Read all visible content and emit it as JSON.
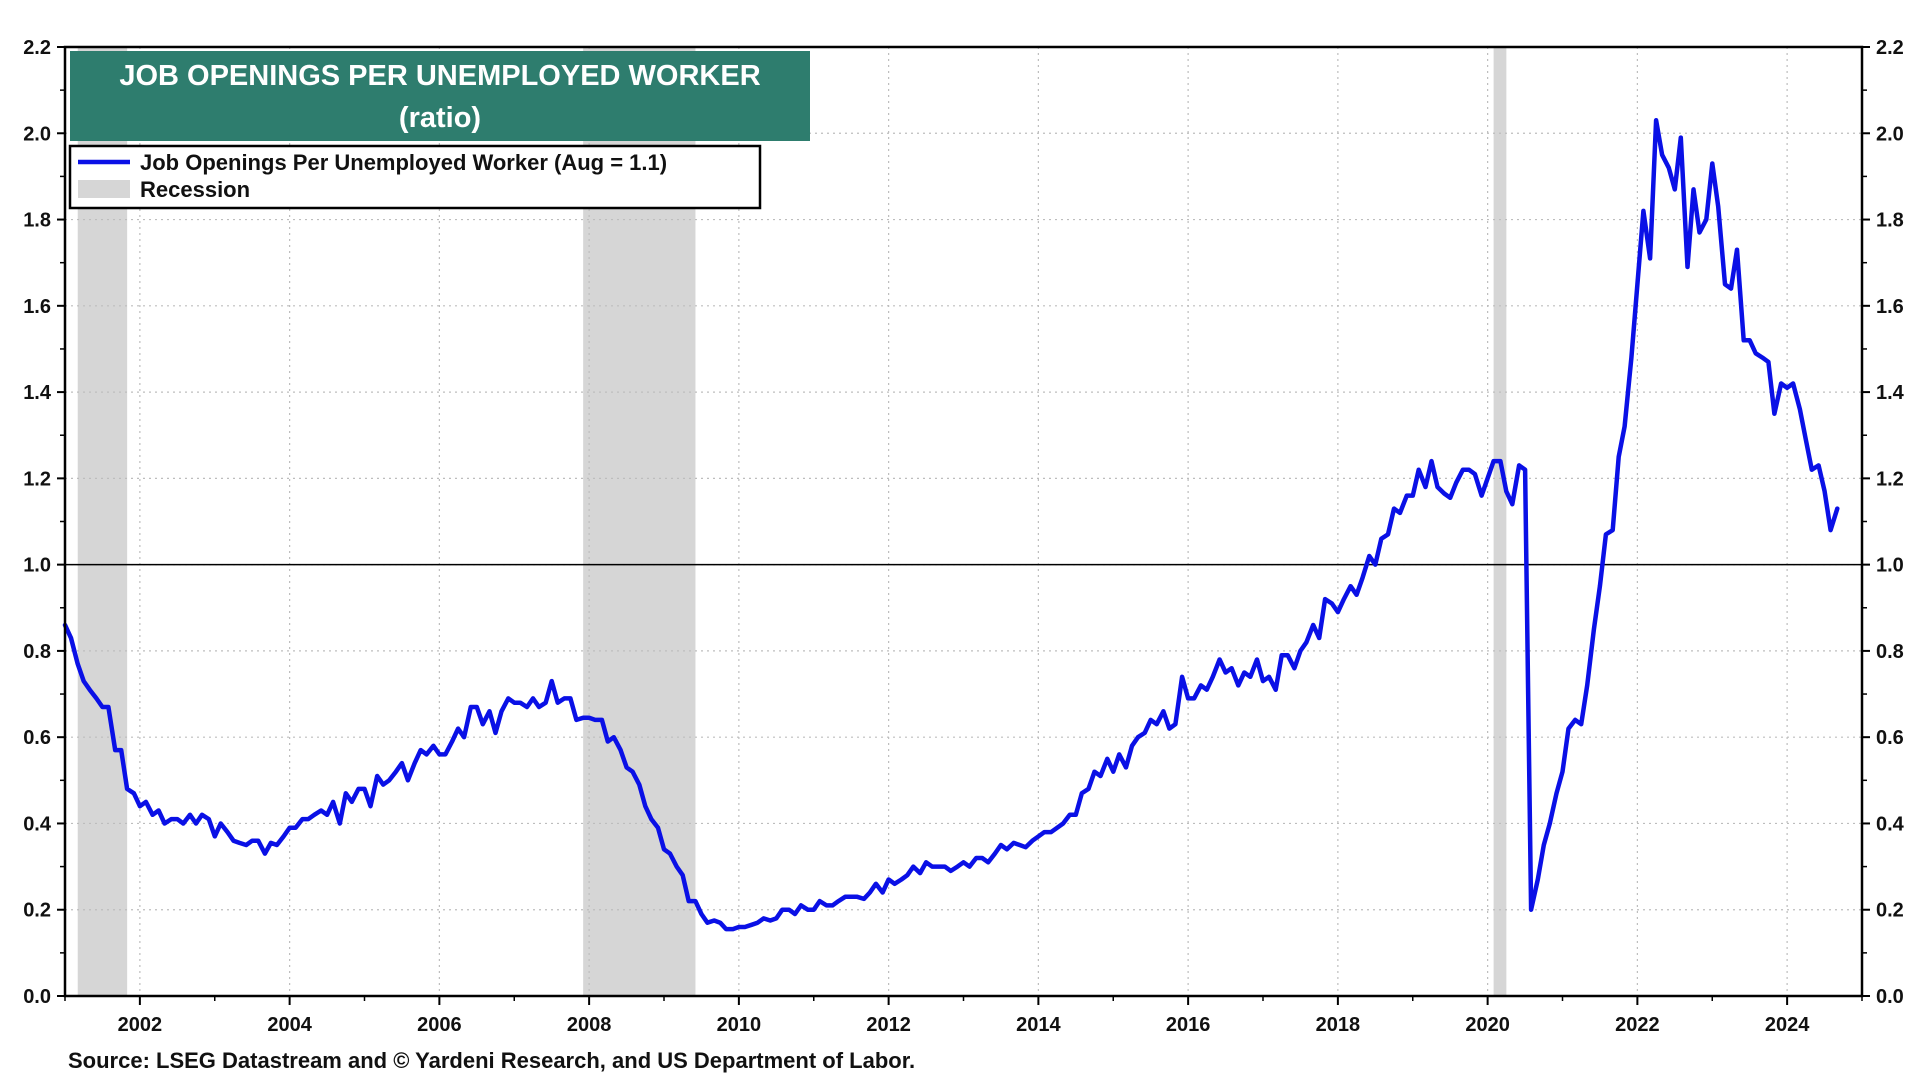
{
  "chart_data": {
    "type": "line",
    "title": "JOB OPENINGS PER UNEMPLOYED WORKER",
    "subtitle": "(ratio)",
    "source": "Source: LSEG Datastream and © Yardeni Research, and US Department of Labor.",
    "xlim": [
      2001.0,
      2025.0
    ],
    "ylim": [
      0.0,
      2.2
    ],
    "x_ticks": [
      2002,
      2004,
      2006,
      2008,
      2010,
      2012,
      2014,
      2016,
      2018,
      2020,
      2022,
      2024
    ],
    "y_ticks": [
      "0.0",
      "0.2",
      "0.4",
      "0.6",
      "0.8",
      "1.0",
      "1.2",
      "1.4",
      "1.6",
      "1.8",
      "2.0",
      "2.2"
    ],
    "grid": true,
    "reference_line": 1.0,
    "legend_position": "top-left",
    "title_color": "#2E7D6E",
    "line_color": "#0A10E6",
    "recession_color": "#D6D6D6",
    "legend": [
      {
        "label": "Job Openings Per Unemployed Worker (Aug = 1.1)",
        "kind": "line"
      },
      {
        "label": "Recession",
        "kind": "band"
      }
    ],
    "recessions": [
      [
        2001.17,
        2001.83
      ],
      [
        2007.92,
        2009.42
      ],
      [
        2020.08,
        2020.25
      ]
    ],
    "series": [
      {
        "name": "Job Openings Per Unemployed Worker (Aug = 1.1)",
        "points": [
          [
            2001.0,
            0.86
          ],
          [
            2001.08,
            0.83
          ],
          [
            2001.17,
            0.77
          ],
          [
            2001.25,
            0.73
          ],
          [
            2001.33,
            0.71
          ],
          [
            2001.42,
            0.69
          ],
          [
            2001.5,
            0.67
          ],
          [
            2001.58,
            0.67
          ],
          [
            2001.67,
            0.57
          ],
          [
            2001.75,
            0.57
          ],
          [
            2001.83,
            0.48
          ],
          [
            2001.92,
            0.47
          ],
          [
            2002.0,
            0.44
          ],
          [
            2002.08,
            0.45
          ],
          [
            2002.17,
            0.42
          ],
          [
            2002.25,
            0.43
          ],
          [
            2002.33,
            0.4
          ],
          [
            2002.42,
            0.41
          ],
          [
            2002.5,
            0.41
          ],
          [
            2002.58,
            0.4
          ],
          [
            2002.67,
            0.42
          ],
          [
            2002.75,
            0.4
          ],
          [
            2002.83,
            0.42
          ],
          [
            2002.92,
            0.41
          ],
          [
            2003.0,
            0.37
          ],
          [
            2003.08,
            0.4
          ],
          [
            2003.17,
            0.38
          ],
          [
            2003.25,
            0.36
          ],
          [
            2003.33,
            0.355
          ],
          [
            2003.42,
            0.35
          ],
          [
            2003.5,
            0.36
          ],
          [
            2003.58,
            0.36
          ],
          [
            2003.67,
            0.33
          ],
          [
            2003.75,
            0.355
          ],
          [
            2003.83,
            0.35
          ],
          [
            2003.92,
            0.37
          ],
          [
            2004.0,
            0.39
          ],
          [
            2004.08,
            0.39
          ],
          [
            2004.17,
            0.41
          ],
          [
            2004.25,
            0.41
          ],
          [
            2004.33,
            0.42
          ],
          [
            2004.42,
            0.43
          ],
          [
            2004.5,
            0.42
          ],
          [
            2004.58,
            0.45
          ],
          [
            2004.67,
            0.4
          ],
          [
            2004.75,
            0.47
          ],
          [
            2004.83,
            0.45
          ],
          [
            2004.92,
            0.48
          ],
          [
            2005.0,
            0.48
          ],
          [
            2005.08,
            0.44
          ],
          [
            2005.17,
            0.51
          ],
          [
            2005.25,
            0.49
          ],
          [
            2005.33,
            0.5
          ],
          [
            2005.42,
            0.52
          ],
          [
            2005.5,
            0.54
          ],
          [
            2005.58,
            0.5
          ],
          [
            2005.67,
            0.54
          ],
          [
            2005.75,
            0.57
          ],
          [
            2005.83,
            0.56
          ],
          [
            2005.92,
            0.58
          ],
          [
            2006.0,
            0.56
          ],
          [
            2006.08,
            0.56
          ],
          [
            2006.17,
            0.59
          ],
          [
            2006.25,
            0.62
          ],
          [
            2006.33,
            0.6
          ],
          [
            2006.42,
            0.67
          ],
          [
            2006.5,
            0.67
          ],
          [
            2006.58,
            0.63
          ],
          [
            2006.67,
            0.66
          ],
          [
            2006.75,
            0.61
          ],
          [
            2006.83,
            0.66
          ],
          [
            2006.92,
            0.69
          ],
          [
            2007.0,
            0.68
          ],
          [
            2007.08,
            0.68
          ],
          [
            2007.17,
            0.67
          ],
          [
            2007.25,
            0.69
          ],
          [
            2007.33,
            0.67
          ],
          [
            2007.42,
            0.68
          ],
          [
            2007.5,
            0.73
          ],
          [
            2007.58,
            0.68
          ],
          [
            2007.67,
            0.69
          ],
          [
            2007.75,
            0.69
          ],
          [
            2007.83,
            0.64
          ],
          [
            2007.92,
            0.645
          ],
          [
            2008.0,
            0.645
          ],
          [
            2008.08,
            0.64
          ],
          [
            2008.17,
            0.64
          ],
          [
            2008.25,
            0.59
          ],
          [
            2008.33,
            0.6
          ],
          [
            2008.42,
            0.57
          ],
          [
            2008.5,
            0.53
          ],
          [
            2008.58,
            0.52
          ],
          [
            2008.67,
            0.49
          ],
          [
            2008.75,
            0.44
          ],
          [
            2008.83,
            0.41
          ],
          [
            2008.92,
            0.39
          ],
          [
            2009.0,
            0.34
          ],
          [
            2009.08,
            0.33
          ],
          [
            2009.17,
            0.3
          ],
          [
            2009.25,
            0.28
          ],
          [
            2009.33,
            0.22
          ],
          [
            2009.42,
            0.22
          ],
          [
            2009.5,
            0.19
          ],
          [
            2009.58,
            0.17
          ],
          [
            2009.67,
            0.175
          ],
          [
            2009.75,
            0.17
          ],
          [
            2009.83,
            0.155
          ],
          [
            2009.92,
            0.155
          ],
          [
            2010.0,
            0.16
          ],
          [
            2010.08,
            0.16
          ],
          [
            2010.17,
            0.165
          ],
          [
            2010.25,
            0.17
          ],
          [
            2010.33,
            0.18
          ],
          [
            2010.42,
            0.175
          ],
          [
            2010.5,
            0.18
          ],
          [
            2010.58,
            0.2
          ],
          [
            2010.67,
            0.2
          ],
          [
            2010.75,
            0.19
          ],
          [
            2010.83,
            0.21
          ],
          [
            2010.92,
            0.2
          ],
          [
            2011.0,
            0.2
          ],
          [
            2011.08,
            0.22
          ],
          [
            2011.17,
            0.21
          ],
          [
            2011.25,
            0.21
          ],
          [
            2011.33,
            0.22
          ],
          [
            2011.42,
            0.23
          ],
          [
            2011.5,
            0.23
          ],
          [
            2011.58,
            0.23
          ],
          [
            2011.67,
            0.225
          ],
          [
            2011.75,
            0.24
          ],
          [
            2011.83,
            0.26
          ],
          [
            2011.92,
            0.24
          ],
          [
            2012.0,
            0.27
          ],
          [
            2012.08,
            0.26
          ],
          [
            2012.17,
            0.27
          ],
          [
            2012.25,
            0.28
          ],
          [
            2012.33,
            0.3
          ],
          [
            2012.42,
            0.285
          ],
          [
            2012.5,
            0.31
          ],
          [
            2012.58,
            0.3
          ],
          [
            2012.67,
            0.3
          ],
          [
            2012.75,
            0.3
          ],
          [
            2012.83,
            0.29
          ],
          [
            2012.92,
            0.3
          ],
          [
            2013.0,
            0.31
          ],
          [
            2013.08,
            0.3
          ],
          [
            2013.17,
            0.32
          ],
          [
            2013.25,
            0.32
          ],
          [
            2013.33,
            0.31
          ],
          [
            2013.42,
            0.33
          ],
          [
            2013.5,
            0.35
          ],
          [
            2013.58,
            0.34
          ],
          [
            2013.67,
            0.355
          ],
          [
            2013.75,
            0.35
          ],
          [
            2013.83,
            0.345
          ],
          [
            2013.92,
            0.36
          ],
          [
            2014.0,
            0.37
          ],
          [
            2014.08,
            0.38
          ],
          [
            2014.17,
            0.38
          ],
          [
            2014.25,
            0.39
          ],
          [
            2014.33,
            0.4
          ],
          [
            2014.42,
            0.42
          ],
          [
            2014.5,
            0.42
          ],
          [
            2014.58,
            0.47
          ],
          [
            2014.67,
            0.48
          ],
          [
            2014.75,
            0.52
          ],
          [
            2014.83,
            0.51
          ],
          [
            2014.92,
            0.55
          ],
          [
            2015.0,
            0.52
          ],
          [
            2015.08,
            0.56
          ],
          [
            2015.17,
            0.53
          ],
          [
            2015.25,
            0.58
          ],
          [
            2015.33,
            0.6
          ],
          [
            2015.42,
            0.61
          ],
          [
            2015.5,
            0.64
          ],
          [
            2015.58,
            0.63
          ],
          [
            2015.67,
            0.66
          ],
          [
            2015.75,
            0.62
          ],
          [
            2015.83,
            0.63
          ],
          [
            2015.92,
            0.74
          ],
          [
            2016.0,
            0.69
          ],
          [
            2016.08,
            0.69
          ],
          [
            2016.17,
            0.72
          ],
          [
            2016.25,
            0.71
          ],
          [
            2016.33,
            0.74
          ],
          [
            2016.42,
            0.78
          ],
          [
            2016.5,
            0.75
          ],
          [
            2016.58,
            0.76
          ],
          [
            2016.67,
            0.72
          ],
          [
            2016.75,
            0.75
          ],
          [
            2016.83,
            0.74
          ],
          [
            2016.92,
            0.78
          ],
          [
            2017.0,
            0.73
          ],
          [
            2017.08,
            0.74
          ],
          [
            2017.17,
            0.71
          ],
          [
            2017.25,
            0.79
          ],
          [
            2017.33,
            0.79
          ],
          [
            2017.42,
            0.76
          ],
          [
            2017.5,
            0.8
          ],
          [
            2017.58,
            0.82
          ],
          [
            2017.67,
            0.86
          ],
          [
            2017.75,
            0.83
          ],
          [
            2017.83,
            0.92
          ],
          [
            2017.92,
            0.91
          ],
          [
            2018.0,
            0.89
          ],
          [
            2018.08,
            0.92
          ],
          [
            2018.17,
            0.95
          ],
          [
            2018.25,
            0.93
          ],
          [
            2018.33,
            0.97
          ],
          [
            2018.42,
            1.02
          ],
          [
            2018.5,
            1.0
          ],
          [
            2018.58,
            1.06
          ],
          [
            2018.67,
            1.07
          ],
          [
            2018.75,
            1.13
          ],
          [
            2018.83,
            1.12
          ],
          [
            2018.92,
            1.16
          ],
          [
            2019.0,
            1.16
          ],
          [
            2019.08,
            1.22
          ],
          [
            2019.17,
            1.18
          ],
          [
            2019.25,
            1.24
          ],
          [
            2019.33,
            1.18
          ],
          [
            2019.42,
            1.165
          ],
          [
            2019.5,
            1.155
          ],
          [
            2019.58,
            1.19
          ],
          [
            2019.67,
            1.22
          ],
          [
            2019.75,
            1.22
          ],
          [
            2019.83,
            1.21
          ],
          [
            2019.92,
            1.16
          ],
          [
            2020.0,
            1.2
          ],
          [
            2020.08,
            1.24
          ],
          [
            2020.17,
            1.24
          ],
          [
            2020.25,
            1.17
          ],
          [
            2020.33,
            1.14
          ],
          [
            2020.42,
            1.23
          ],
          [
            2020.5,
            1.22
          ],
          [
            2020.58,
            0.2
          ],
          [
            2020.67,
            0.27
          ],
          [
            2020.75,
            0.35
          ],
          [
            2020.83,
            0.4
          ],
          [
            2020.92,
            0.47
          ],
          [
            2021.0,
            0.52
          ],
          [
            2021.08,
            0.62
          ],
          [
            2021.17,
            0.64
          ],
          [
            2021.25,
            0.63
          ],
          [
            2021.33,
            0.72
          ],
          [
            2021.42,
            0.85
          ],
          [
            2021.5,
            0.95
          ],
          [
            2021.58,
            1.07
          ],
          [
            2021.67,
            1.08
          ],
          [
            2021.75,
            1.25
          ],
          [
            2021.83,
            1.32
          ],
          [
            2021.92,
            1.48
          ],
          [
            2022.0,
            1.65
          ],
          [
            2022.08,
            1.82
          ],
          [
            2022.17,
            1.71
          ],
          [
            2022.25,
            2.03
          ],
          [
            2022.33,
            1.95
          ],
          [
            2022.42,
            1.92
          ],
          [
            2022.5,
            1.87
          ],
          [
            2022.58,
            1.99
          ],
          [
            2022.67,
            1.69
          ],
          [
            2022.75,
            1.87
          ],
          [
            2022.83,
            1.77
          ],
          [
            2022.92,
            1.8
          ],
          [
            2023.0,
            1.93
          ],
          [
            2023.08,
            1.83
          ],
          [
            2023.17,
            1.65
          ],
          [
            2023.25,
            1.64
          ],
          [
            2023.33,
            1.73
          ],
          [
            2023.42,
            1.52
          ],
          [
            2023.5,
            1.52
          ],
          [
            2023.58,
            1.49
          ],
          [
            2023.67,
            1.48
          ],
          [
            2023.75,
            1.47
          ],
          [
            2023.83,
            1.35
          ],
          [
            2023.92,
            1.42
          ],
          [
            2024.0,
            1.41
          ],
          [
            2024.08,
            1.42
          ],
          [
            2024.17,
            1.36
          ],
          [
            2024.25,
            1.29
          ],
          [
            2024.33,
            1.22
          ],
          [
            2024.42,
            1.23
          ],
          [
            2024.5,
            1.17
          ],
          [
            2024.58,
            1.08
          ],
          [
            2024.67,
            1.13
          ]
        ]
      }
    ]
  }
}
